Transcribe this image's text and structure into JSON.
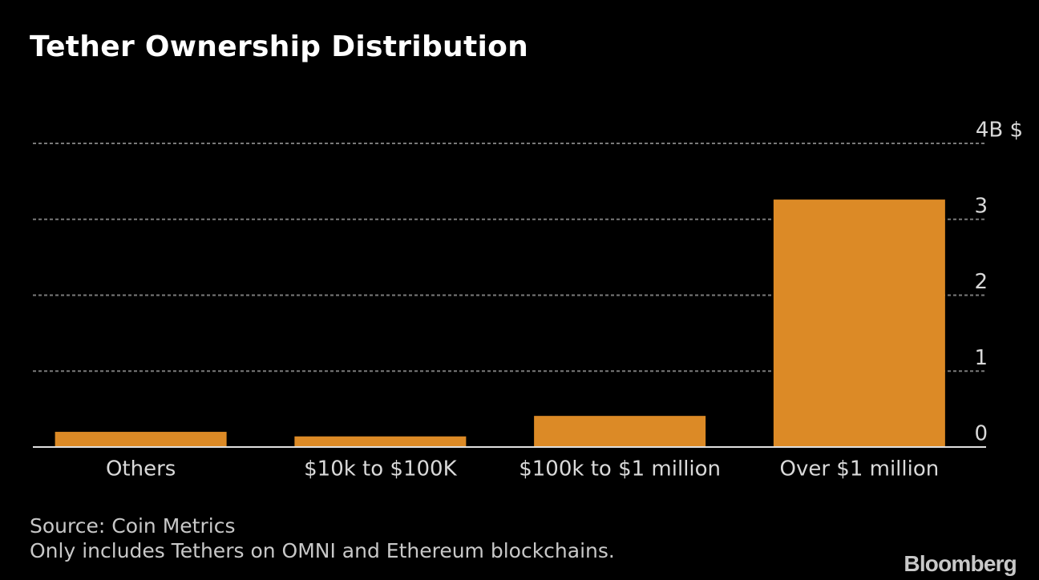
{
  "chart_data": {
    "type": "bar",
    "title": "Tether Ownership Distribution",
    "categories": [
      "Others",
      "$10k to $100K",
      "$100k to $1 million",
      "Over $1 million"
    ],
    "values": [
      0.2,
      0.14,
      0.41,
      3.26
    ],
    "ylim": [
      0,
      4
    ],
    "yticks": [
      {
        "value": 0,
        "label": "0"
      },
      {
        "value": 1,
        "label": "1"
      },
      {
        "value": 2,
        "label": "2"
      },
      {
        "value": 3,
        "label": "3"
      },
      {
        "value": 4,
        "label": "4B $"
      }
    ],
    "grid": true,
    "bar_color": "#dc8a26",
    "gridline_color": "#7a7a7a"
  },
  "footer": {
    "source": "Source: Coin Metrics",
    "note": "Only includes Tethers on OMNI and Ethereum blockchains."
  },
  "brand": "Bloomberg"
}
